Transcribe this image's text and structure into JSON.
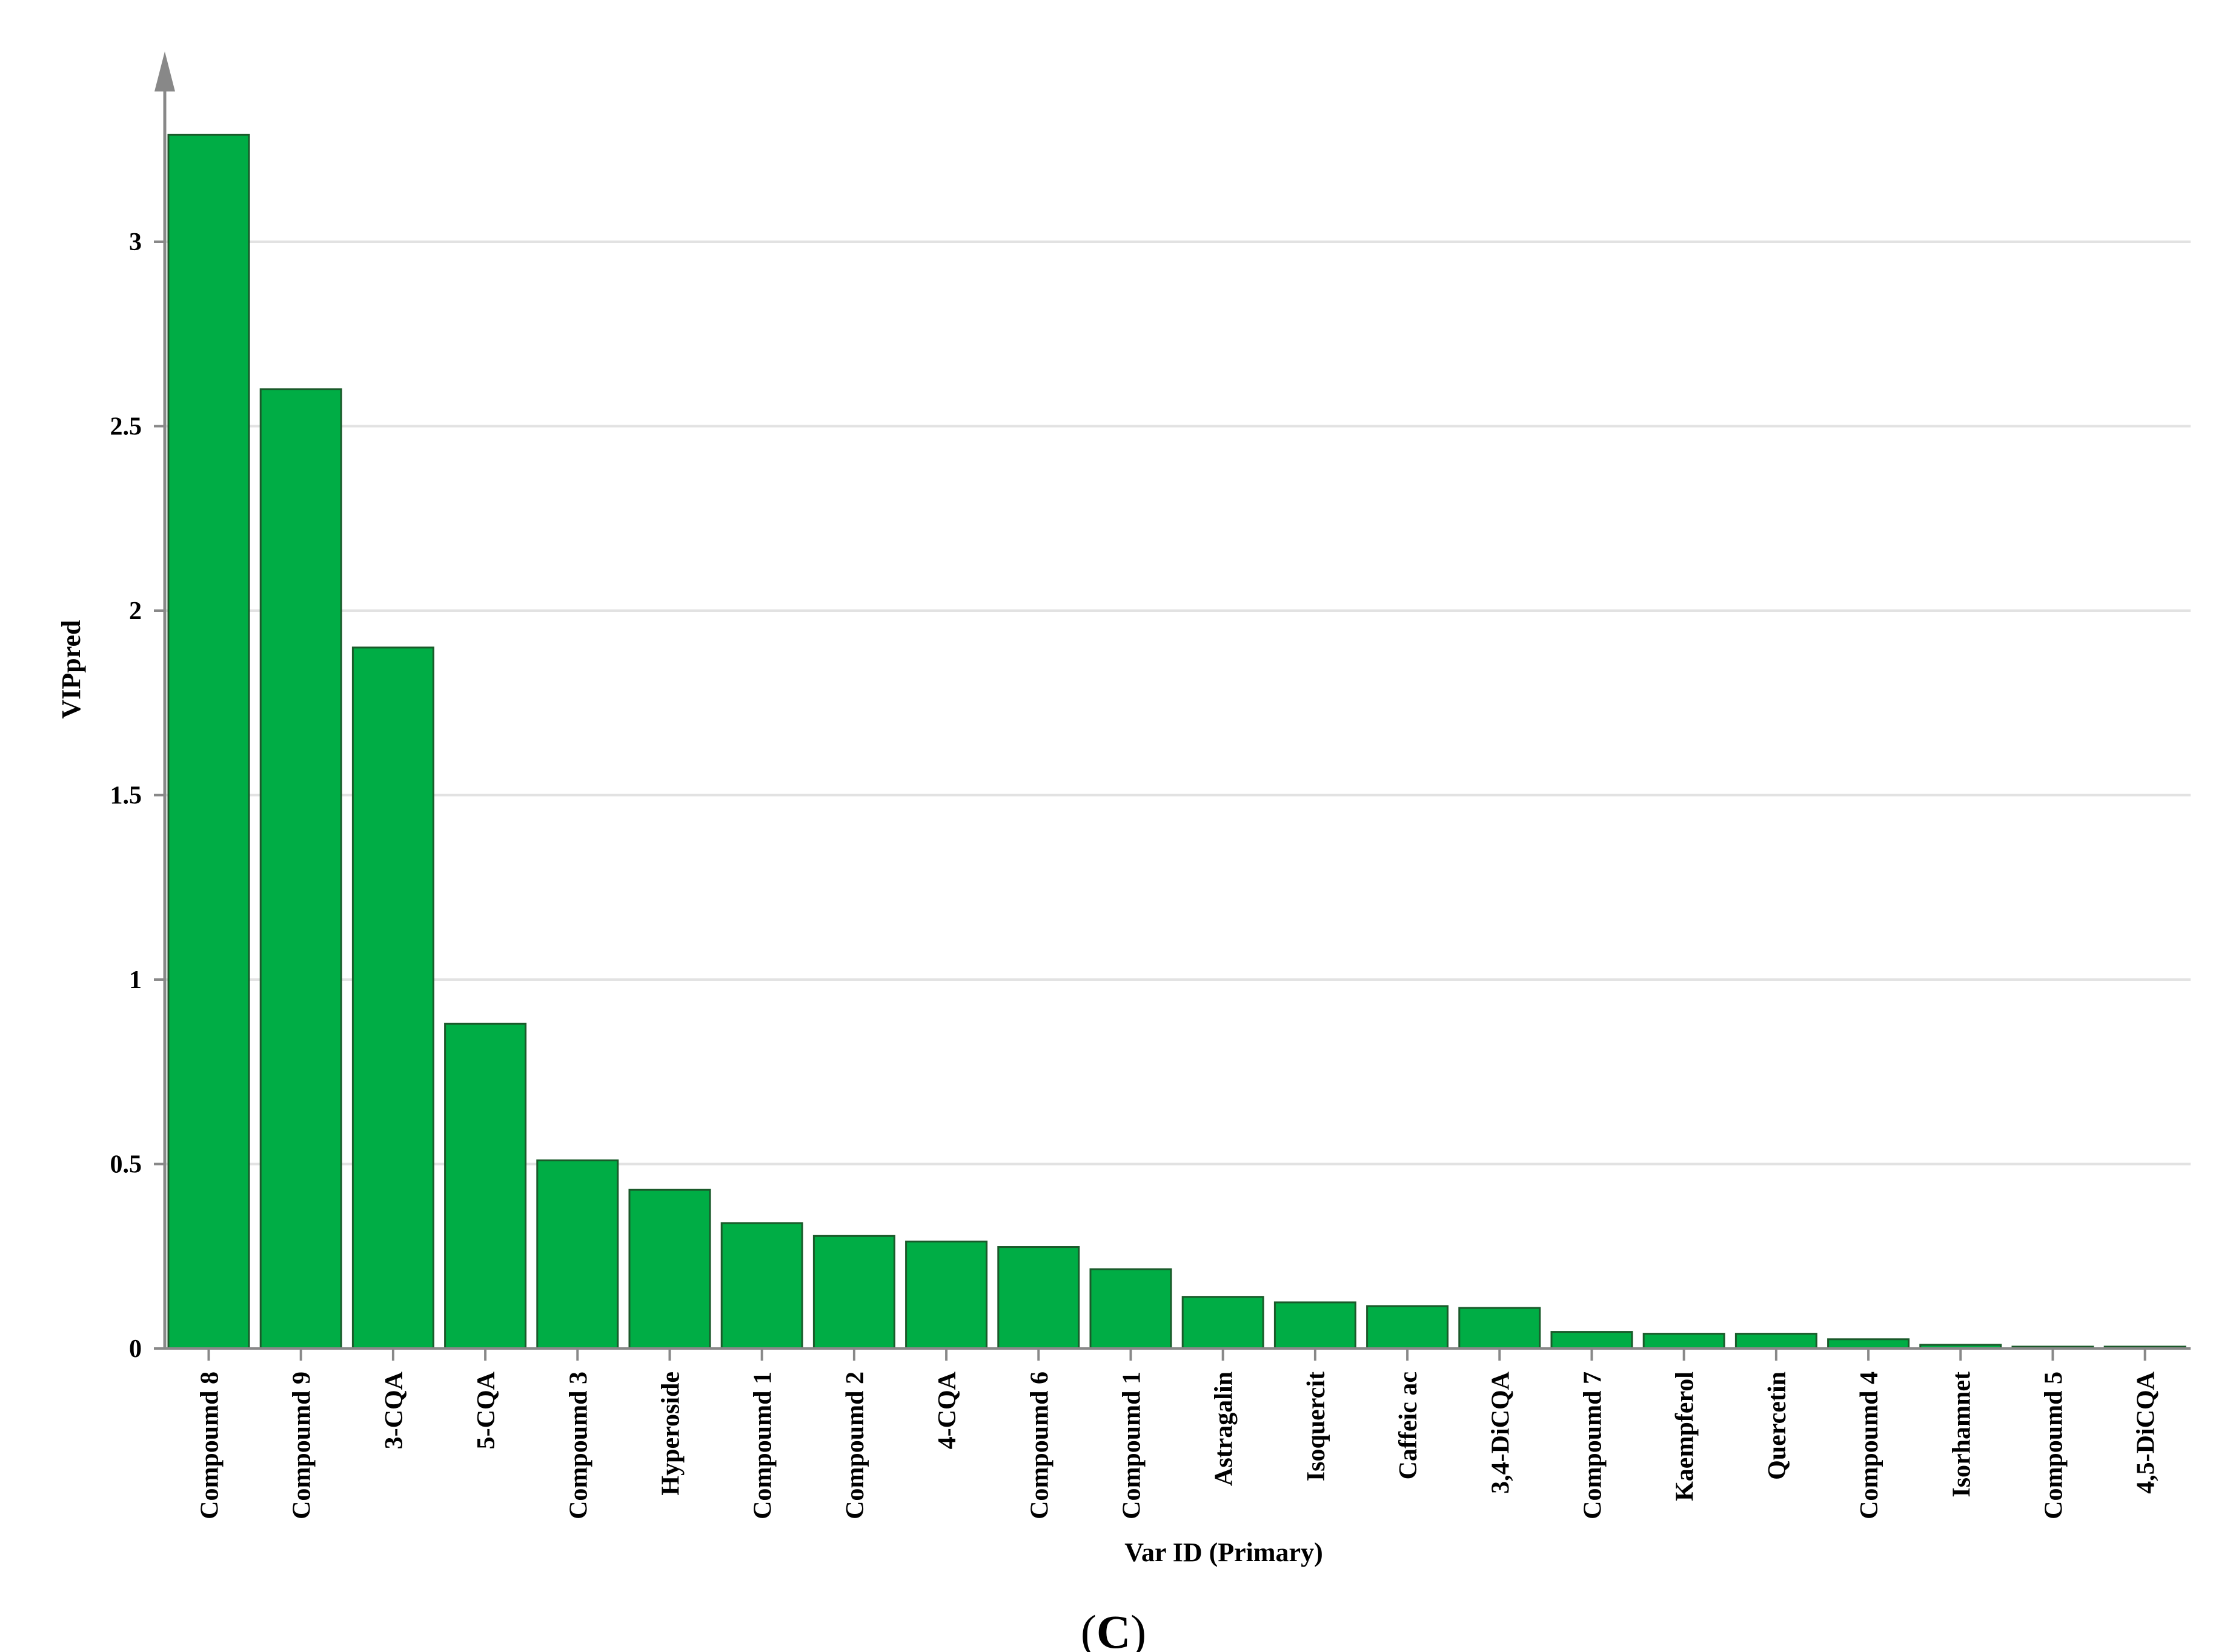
{
  "chart_data": {
    "type": "bar",
    "title": "",
    "xlabel": "Var ID (Primary)",
    "ylabel": "VIPpred",
    "ylim": [
      0,
      3.4
    ],
    "yticks": [
      "0",
      "0.5",
      "1",
      "1.5",
      "2",
      "2.5",
      "3"
    ],
    "grid": true,
    "categories": [
      "Compoumd 8",
      "Compoumd 9",
      "3-CQA",
      "5-CQA",
      "Compoumd 3",
      "Hyperoside",
      "Compoumd 1",
      "Compoumd 2",
      "4-CQA",
      "Compoumd 6",
      "Compoumd 1",
      "Astragalin",
      "Isoquercit",
      "Caffeic ac",
      "3,4-DiCQA",
      "Compoumd 7",
      "Kaempferol",
      "Quercetin",
      "Compoumd 4",
      "Isorhamnet",
      "Compoumd 5",
      "4,5-DiCQA"
    ],
    "values": [
      3.29,
      2.6,
      1.9,
      0.88,
      0.51,
      0.43,
      0.34,
      0.305,
      0.29,
      0.275,
      0.215,
      0.14,
      0.125,
      0.115,
      0.11,
      0.045,
      0.04,
      0.04,
      0.025,
      0.01,
      0.005,
      0.005
    ],
    "colors": {
      "bar": "#00ad45",
      "bar_stroke": "#1a5a2a",
      "grid": "#e2e2e2",
      "axis": "#888888"
    }
  },
  "panel_label": {
    "open": "(",
    "letter": "C",
    "close": ")"
  }
}
